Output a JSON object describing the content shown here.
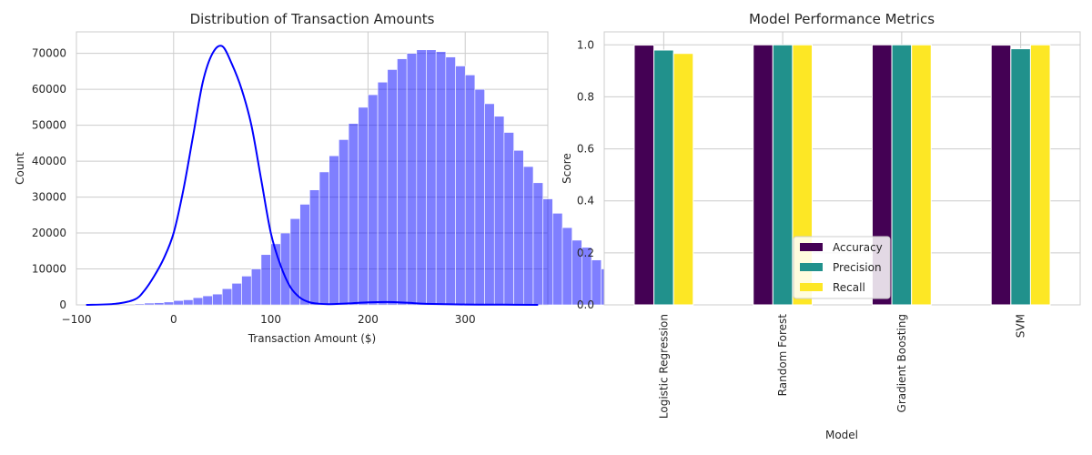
{
  "chart_data": [
    {
      "type": "bar",
      "subtype": "histogram",
      "title": "Distribution of Transaction Amounts",
      "xlabel": "Transaction Amount ($)",
      "ylabel": "Count",
      "xlim": [
        -100,
        385
      ],
      "ylim": [
        0,
        76000
      ],
      "xticks": [
        -100,
        0,
        100,
        200,
        300
      ],
      "yticks": [
        0,
        10000,
        20000,
        30000,
        40000,
        50000,
        60000,
        70000
      ],
      "grid": true,
      "bar_color": "#0000ff",
      "bar_alpha": 0.5,
      "kde_color": "#0000ff",
      "bin_start": -40,
      "bin_width": 10,
      "bin_counts": [
        300,
        500,
        600,
        800,
        1200,
        1400,
        2000,
        2500,
        3000,
        4500,
        6000,
        8000,
        10000,
        14000,
        17000,
        20000,
        24000,
        28000,
        32000,
        37000,
        41500,
        46000,
        50500,
        55000,
        58500,
        62000,
        65500,
        68500,
        70000,
        71000,
        71000,
        70500,
        69000,
        66500,
        64000,
        60000,
        56000,
        52500,
        48000,
        43000,
        38500,
        34000,
        29500,
        25500,
        21500,
        18000,
        16000,
        12500,
        10000,
        7500,
        5000,
        2800,
        1500,
        800
      ],
      "kde": {
        "x": [
          -90,
          -60,
          -40,
          -30,
          -20,
          -10,
          0,
          10,
          20,
          30,
          40,
          50,
          60,
          70,
          80,
          90,
          100,
          110,
          120,
          130,
          140,
          150,
          160,
          180,
          200,
          220,
          240,
          260,
          300,
          340,
          375
        ],
        "y": [
          0,
          300,
          1500,
          4000,
          8000,
          13000,
          20000,
          32000,
          47000,
          62000,
          70000,
          72000,
          67000,
          60000,
          50000,
          35000,
          20000,
          11000,
          5000,
          2000,
          700,
          300,
          200,
          400,
          700,
          800,
          600,
          300,
          100,
          50,
          0
        ]
      }
    },
    {
      "type": "bar",
      "title": "Model Performance Metrics",
      "xlabel": "Model",
      "ylabel": "Score",
      "ylim": [
        0,
        1.05
      ],
      "yticks": [
        0.0,
        0.2,
        0.4,
        0.6,
        0.8,
        1.0
      ],
      "ytick_labels": [
        "0.0",
        "0.2",
        "0.4",
        "0.6",
        "0.8",
        "1.0"
      ],
      "grid": true,
      "legend_position": "bottom-center",
      "categories": [
        "Logistic Regression",
        "Random Forest",
        "Gradient Boosting",
        "SVM"
      ],
      "series": [
        {
          "name": "Accuracy",
          "color": "#440154",
          "values": [
            0.999,
            1.0,
            1.0,
            0.999
          ]
        },
        {
          "name": "Precision",
          "color": "#21918c",
          "values": [
            0.98,
            1.0,
            1.0,
            0.985
          ]
        },
        {
          "name": "Recall",
          "color": "#fde725",
          "values": [
            0.967,
            1.0,
            1.0,
            1.0
          ]
        }
      ]
    }
  ]
}
